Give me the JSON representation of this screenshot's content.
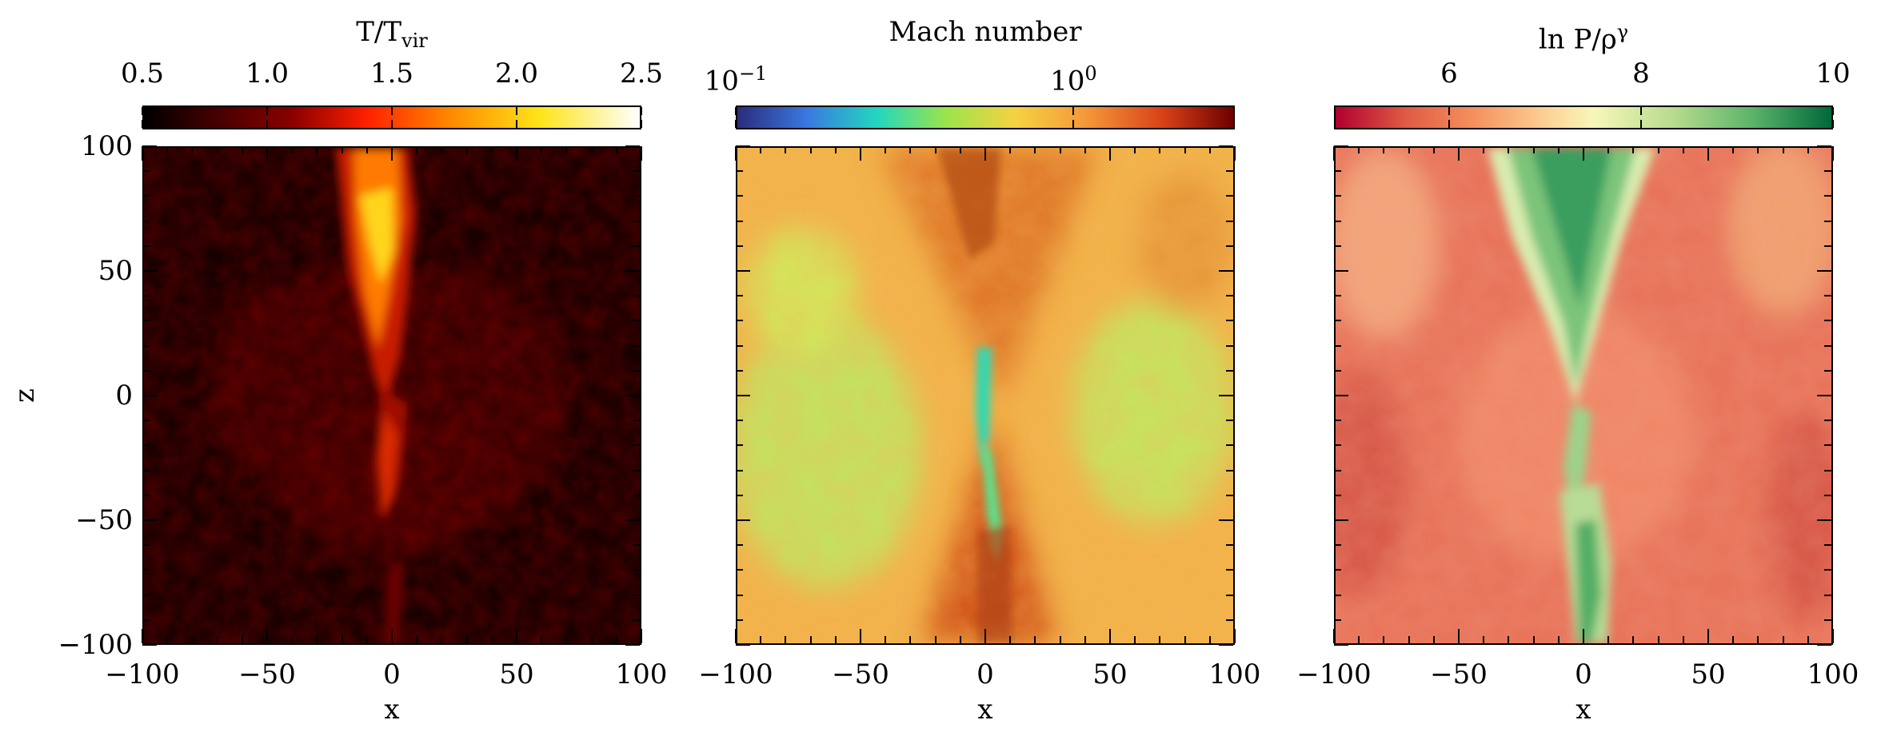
{
  "chart_data": [
    {
      "type": "heatmap",
      "title": "",
      "colorbar_label": "T/T",
      "colorbar_label_sub": "vir",
      "colorbar_range": [
        0.5,
        2.5
      ],
      "colorbar_ticks": [
        "0.5",
        "1.0",
        "1.5",
        "2.0",
        "2.5"
      ],
      "colorbar_tick_values": [
        0.5,
        1.0,
        1.5,
        2.0,
        2.5
      ],
      "colormap": [
        "#000000",
        "#4a0000",
        "#b00000",
        "#ff2a00",
        "#ff9900",
        "#ffee22",
        "#ffffff"
      ],
      "xlabel": "x",
      "ylabel": "z",
      "xlim": [
        -100,
        100
      ],
      "ylim": [
        -100,
        100
      ],
      "x_ticks": [
        "−100",
        "−50",
        "0",
        "50",
        "100"
      ],
      "y_ticks": [
        "−100",
        "−50",
        "0",
        "50",
        "100"
      ],
      "tick_values": [
        -100,
        -50,
        0,
        50,
        100
      ],
      "description_feature": "hot bipolar outflow along +z"
    },
    {
      "type": "heatmap",
      "title": "",
      "colorbar_label": "Mach number",
      "colorbar_scale": "log",
      "colorbar_range": [
        0.1,
        3.0
      ],
      "colorbar_ticks": [
        "10",
        "10"
      ],
      "colorbar_tick_exponents": [
        "−1",
        "0"
      ],
      "colorbar_tick_values": [
        0.1,
        1.0
      ],
      "colormap": [
        "#2a2a7a",
        "#3a7fe0",
        "#22d3c0",
        "#9be44a",
        "#f0c040",
        "#f08030",
        "#c83010",
        "#700000"
      ],
      "xlabel": "x",
      "xlim": [
        -100,
        100
      ],
      "ylim": [
        -100,
        100
      ],
      "x_ticks": [
        "−100",
        "−50",
        "0",
        "50",
        "100"
      ],
      "tick_values": [
        -100,
        -50,
        0,
        50,
        100
      ]
    },
    {
      "type": "heatmap",
      "title": "",
      "colorbar_label": "ln P/ρ",
      "colorbar_label_sup": "γ",
      "colorbar_range": [
        4.8,
        10
      ],
      "colorbar_ticks": [
        "6",
        "8",
        "10"
      ],
      "colorbar_tick_values": [
        6,
        8,
        10
      ],
      "colormap": [
        "#b00030",
        "#e05040",
        "#f59060",
        "#fde0a0",
        "#f0f5b0",
        "#9ed08a",
        "#3aa060",
        "#006837"
      ],
      "xlabel": "x",
      "xlim": [
        -100,
        100
      ],
      "ylim": [
        -100,
        100
      ],
      "x_ticks": [
        "−100",
        "−50",
        "0",
        "50",
        "100"
      ],
      "tick_values": [
        -100,
        -50,
        0,
        50,
        100
      ]
    }
  ]
}
